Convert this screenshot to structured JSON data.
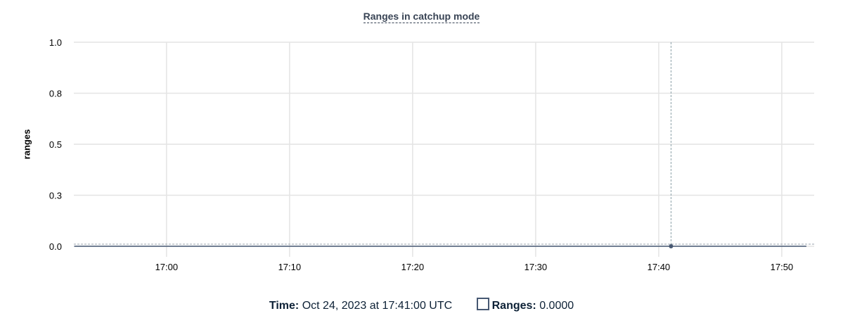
{
  "chart_data": {
    "type": "line",
    "title": "Ranges in catchup mode",
    "xlabel": "",
    "ylabel": "ranges",
    "ylim": [
      0,
      1
    ],
    "xlim": [
      "16:52:28",
      "17:52:38"
    ],
    "y_ticks": [
      {
        "value": 0,
        "label": "0.0"
      },
      {
        "value": 0.25,
        "label": "0.3"
      },
      {
        "value": 0.5,
        "label": "0.5"
      },
      {
        "value": 0.75,
        "label": "0.8"
      },
      {
        "value": 1,
        "label": "1.0"
      }
    ],
    "x_ticks": [
      "17:00",
      "17:10",
      "17:20",
      "17:30",
      "17:40",
      "17:50"
    ],
    "grid": true,
    "series": [
      {
        "name": "Ranges",
        "color": "#475872",
        "x": [
          "16:52:30",
          "17:00",
          "17:10",
          "17:20",
          "17:30",
          "17:40",
          "17:41",
          "17:50",
          "17:52"
        ],
        "y": [
          0,
          0,
          0,
          0,
          0,
          0,
          0,
          0,
          0
        ]
      }
    ],
    "hover": {
      "x": "17:41",
      "y": 0
    }
  },
  "legend": {
    "time_label": "Time:",
    "time_value": "Oct 24, 2023 at 17:41:00 UTC",
    "series_label": "Ranges:",
    "series_value": "0.0000"
  }
}
